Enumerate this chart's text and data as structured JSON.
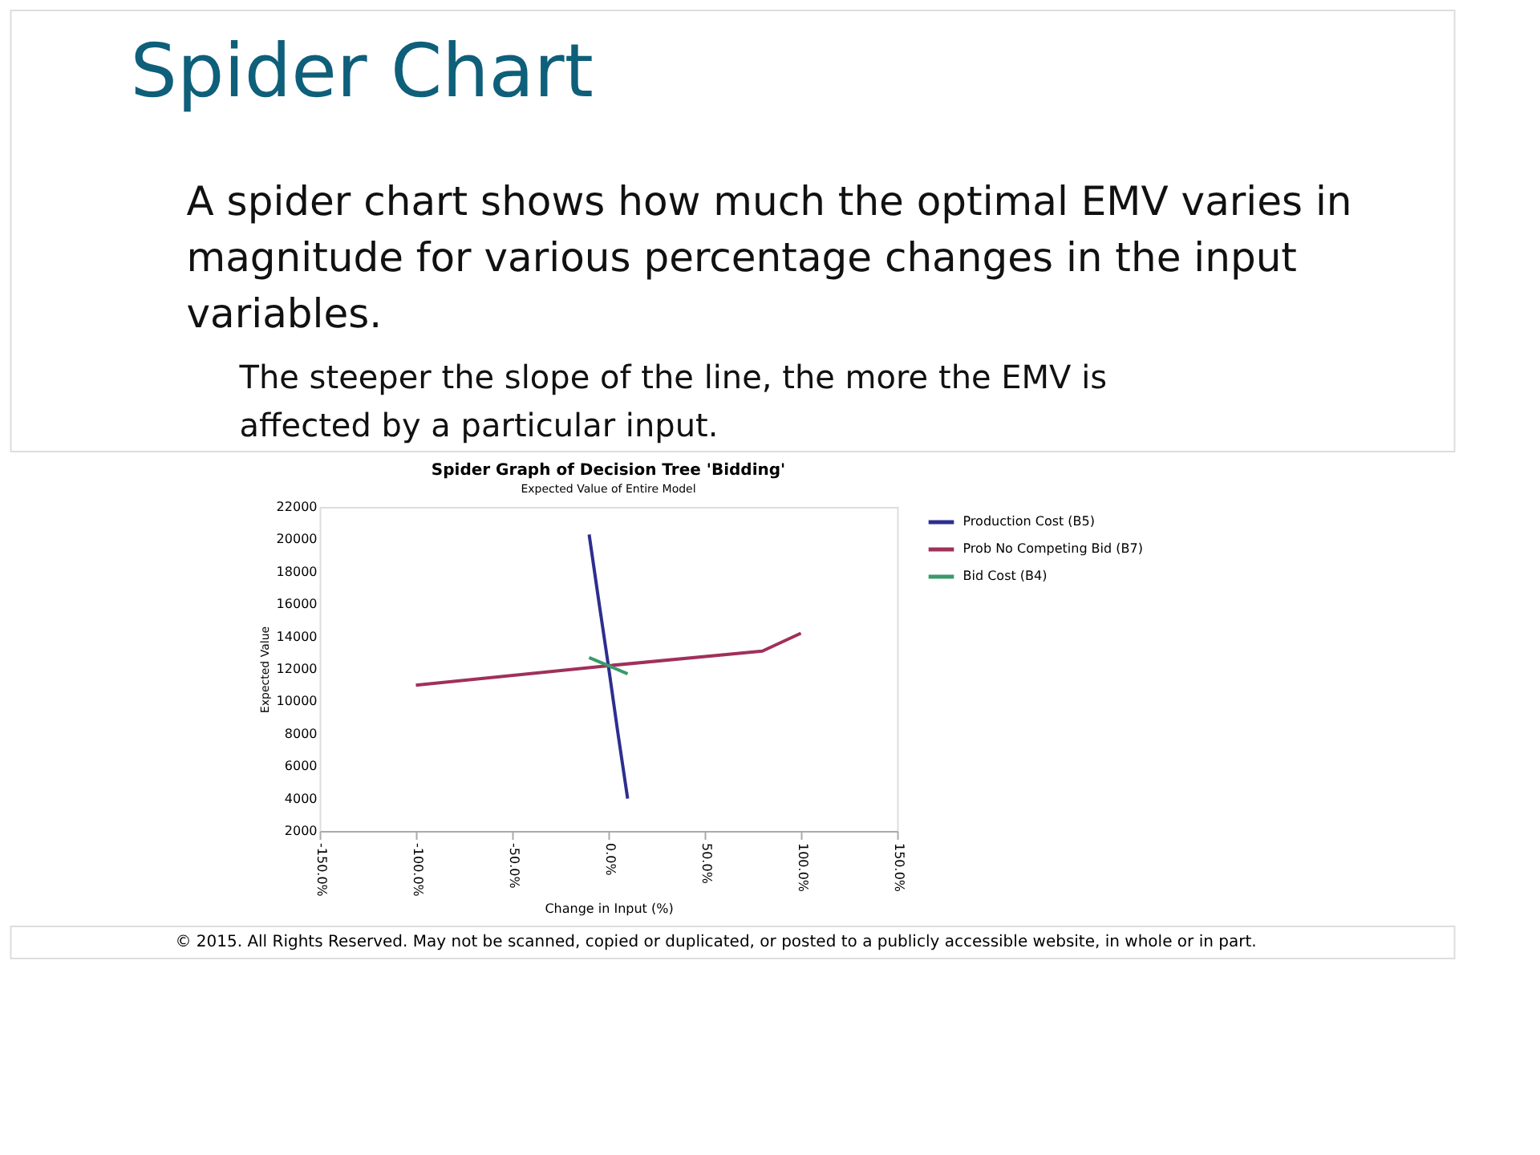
{
  "chart_data": {
    "type": "line",
    "title": "Spider Graph of Decision Tree 'Bidding'",
    "subtitle": "Expected Value of Entire Model",
    "xlabel": "Change in Input (%)",
    "ylabel": "Expected Value",
    "annotations": [
      "Spider Chart",
      "A spider chart shows how much the optimal EMV varies in magnitude for various percentage changes in the input variables.",
      "The steeper the slope of the line, the more the EMV is affected by a particular input.",
      "© 2015. All Rights Reserved. May not be scanned, copied or duplicated, or posted to a publicly accessible website, in whole or in part."
    ],
    "series": [
      {
        "name": "Production Cost (B5)",
        "color": "#2e2e8f",
        "x": [
          -10,
          -5,
          0,
          5,
          10
        ],
        "values": [
          20300,
          16200,
          12200,
          8000,
          4000
        ]
      },
      {
        "name": "Prob No Competing Bid (B7)",
        "color": "#a0305a",
        "x": [
          -100,
          0,
          80,
          100
        ],
        "values": [
          11000,
          12200,
          13100,
          14200
        ]
      },
      {
        "name": "Bid Cost (B4)",
        "color": "#3a9a6a",
        "x": [
          -10,
          0,
          10
        ],
        "values": [
          12700,
          12200,
          11700
        ]
      }
    ],
    "xlim": [
      -150,
      150
    ],
    "xticks": [
      {
        "value": -150,
        "label": "-150.0%"
      },
      {
        "value": -100,
        "label": "-100.0%"
      },
      {
        "value": -50,
        "label": "-50.0%"
      },
      {
        "value": 0,
        "label": "0.0%"
      },
      {
        "value": 50,
        "label": "50.0%"
      },
      {
        "value": 100,
        "label": "100.0%"
      },
      {
        "value": 150,
        "label": "150.0%"
      }
    ],
    "ylim": [
      2000,
      22000
    ],
    "yticks": [
      2000,
      4000,
      6000,
      8000,
      10000,
      12000,
      14000,
      16000,
      18000,
      20000,
      22000
    ],
    "grid": false,
    "legend": "right",
    "marker": "none",
    "line_style": "solid"
  }
}
